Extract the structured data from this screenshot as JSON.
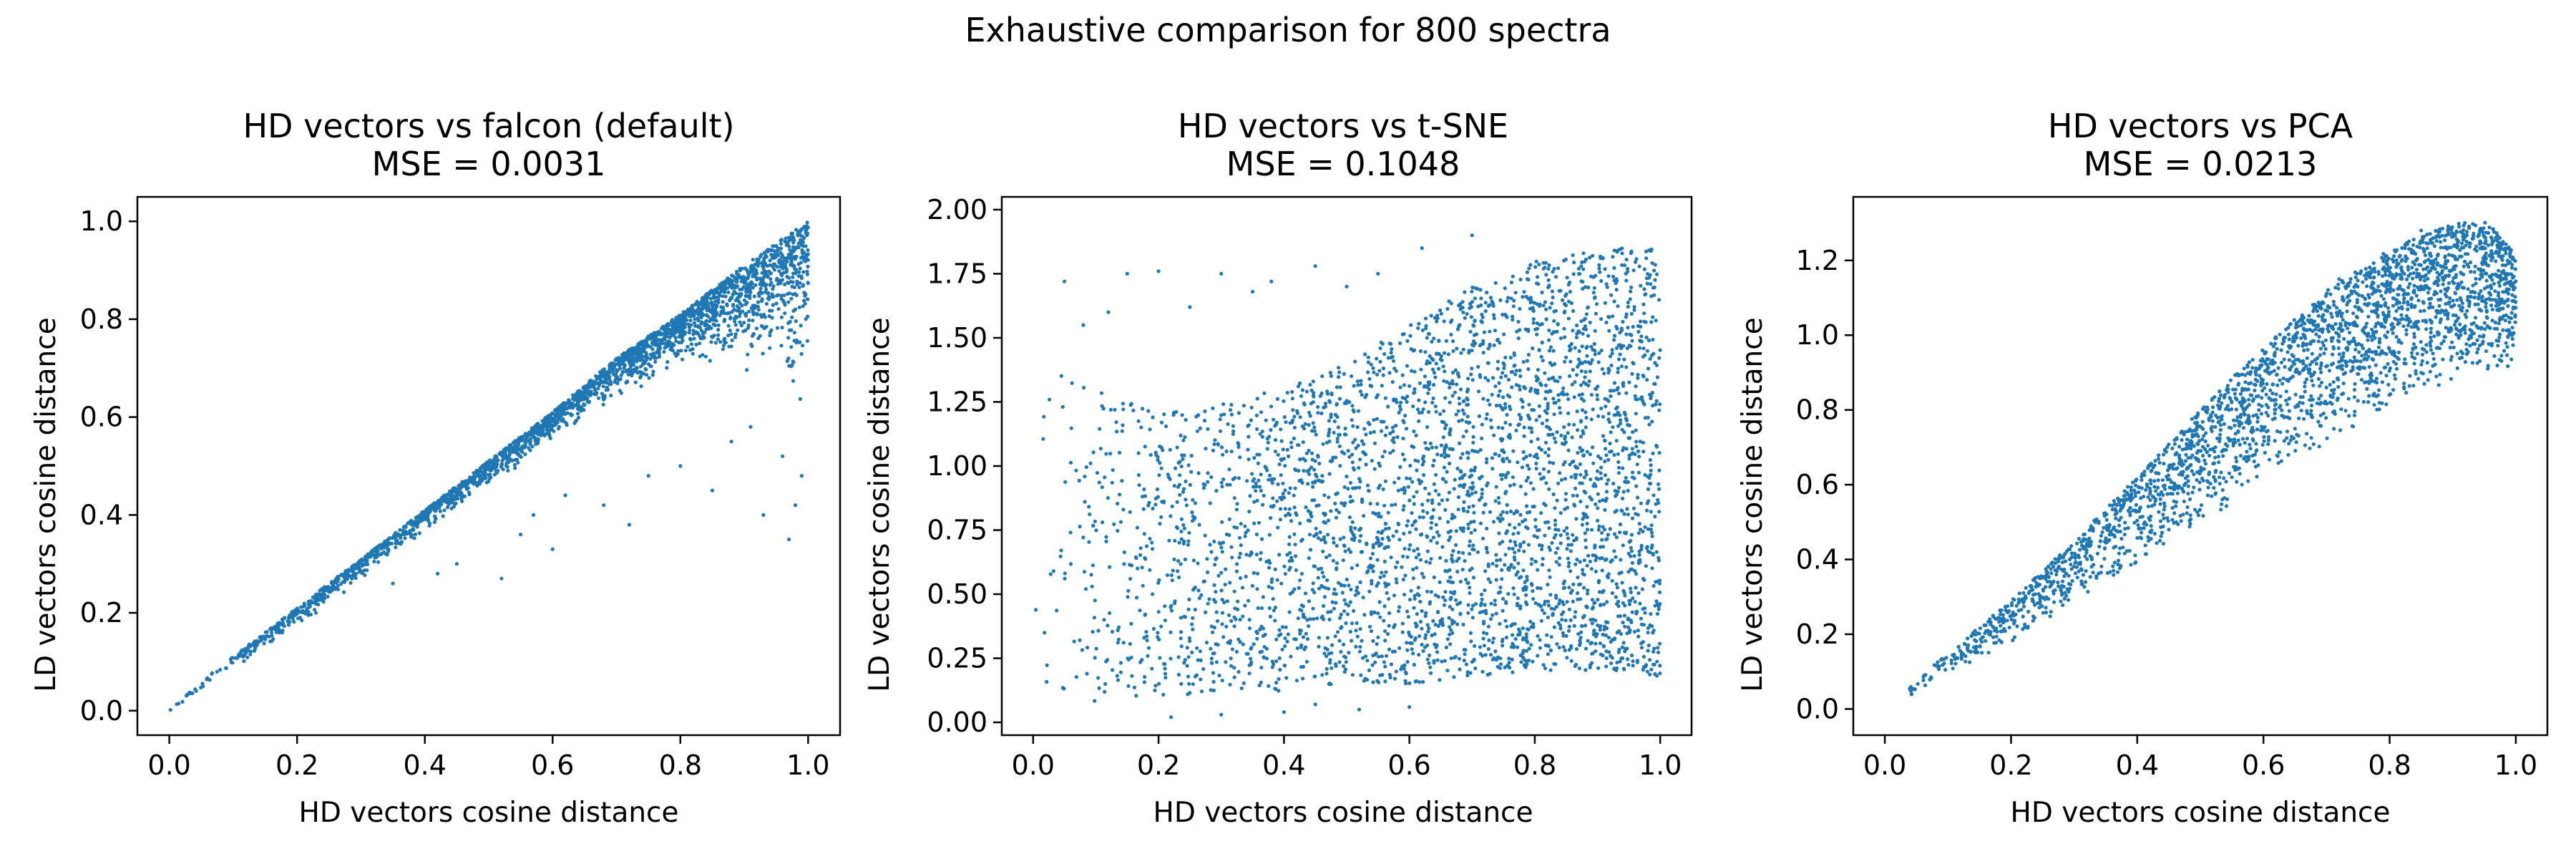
{
  "figure": {
    "suptitle": "Exhaustive comparison for 800 spectra"
  },
  "chart_data": [
    {
      "type": "scatter",
      "title": "HD vectors vs falcon (default)",
      "subtitle": "MSE = 0.0031",
      "xlabel": "HD vectors cosine distance",
      "ylabel": "LD vectors cosine distance",
      "xlim": [
        -0.05,
        1.05
      ],
      "ylim": [
        -0.05,
        1.05
      ],
      "xticks": [
        "0.0",
        "0.2",
        "0.4",
        "0.6",
        "0.8",
        "1.0"
      ],
      "yticks": [
        "0.0",
        "0.2",
        "0.4",
        "0.6",
        "0.8",
        "1.0"
      ],
      "color": "#1f77b4",
      "grid": false,
      "series": [
        {
          "shape": [
            [
              0.0,
              0.0,
              0.0
            ],
            [
              0.05,
              0.04,
              0.06
            ],
            [
              0.1,
              0.08,
              0.11
            ],
            [
              0.2,
              0.17,
              0.21
            ],
            [
              0.3,
              0.26,
              0.31
            ],
            [
              0.4,
              0.36,
              0.41
            ],
            [
              0.5,
              0.45,
              0.51
            ],
            [
              0.6,
              0.55,
              0.61
            ],
            [
              0.7,
              0.63,
              0.72
            ],
            [
              0.8,
              0.7,
              0.81
            ],
            [
              0.9,
              0.68,
              0.91
            ],
            [
              1.0,
              0.62,
              1.0
            ]
          ],
          "outliers": [
            [
              0.45,
              0.3
            ],
            [
              0.42,
              0.28
            ],
            [
              0.52,
              0.27
            ],
            [
              0.6,
              0.33
            ],
            [
              0.55,
              0.36
            ],
            [
              0.68,
              0.42
            ],
            [
              0.72,
              0.38
            ],
            [
              0.85,
              0.45
            ],
            [
              0.93,
              0.4
            ],
            [
              0.97,
              0.35
            ],
            [
              0.99,
              0.48
            ],
            [
              0.96,
              0.52
            ],
            [
              0.8,
              0.5
            ],
            [
              0.75,
              0.48
            ],
            [
              0.88,
              0.55
            ],
            [
              0.35,
              0.26
            ],
            [
              0.62,
              0.44
            ],
            [
              0.91,
              0.58
            ],
            [
              0.98,
              0.42
            ],
            [
              0.57,
              0.4
            ]
          ]
        }
      ]
    },
    {
      "type": "scatter",
      "title": "HD vectors vs t-SNE",
      "subtitle": "MSE = 0.1048",
      "xlabel": "HD vectors cosine distance",
      "ylabel": "LD vectors cosine distance",
      "xlim": [
        -0.05,
        1.05
      ],
      "ylim": [
        -0.05,
        2.05
      ],
      "xticks": [
        "0.0",
        "0.2",
        "0.4",
        "0.6",
        "0.8",
        "1.0"
      ],
      "yticks": [
        "0.00",
        "0.25",
        "0.50",
        "0.75",
        "1.00",
        "1.25",
        "1.50",
        "1.75",
        "2.00"
      ],
      "color": "#1f77b4",
      "grid": false,
      "series": [
        {
          "shape": [
            [
              0.0,
              0.1,
              1.4
            ],
            [
              0.1,
              0.08,
              1.3
            ],
            [
              0.2,
              0.1,
              1.2
            ],
            [
              0.3,
              0.12,
              1.25
            ],
            [
              0.4,
              0.12,
              1.3
            ],
            [
              0.5,
              0.15,
              1.4
            ],
            [
              0.6,
              0.15,
              1.55
            ],
            [
              0.7,
              0.18,
              1.7
            ],
            [
              0.8,
              0.2,
              1.8
            ],
            [
              0.9,
              0.2,
              1.85
            ],
            [
              1.0,
              0.18,
              1.85
            ]
          ],
          "outliers": [
            [
              0.05,
              1.72
            ],
            [
              0.15,
              1.75
            ],
            [
              0.2,
              1.76
            ],
            [
              0.3,
              1.75
            ],
            [
              0.38,
              1.72
            ],
            [
              0.45,
              1.78
            ],
            [
              0.5,
              1.7
            ],
            [
              0.55,
              1.75
            ],
            [
              0.62,
              1.85
            ],
            [
              0.7,
              1.9
            ],
            [
              0.12,
              1.6
            ],
            [
              0.25,
              1.62
            ],
            [
              0.08,
              1.55
            ],
            [
              0.35,
              1.68
            ],
            [
              0.52,
              0.05
            ],
            [
              0.4,
              0.04
            ],
            [
              0.3,
              0.03
            ],
            [
              0.6,
              0.06
            ],
            [
              0.45,
              0.07
            ],
            [
              0.22,
              0.02
            ]
          ]
        }
      ]
    },
    {
      "type": "scatter",
      "title": "HD vectors vs PCA",
      "subtitle": "MSE = 0.0213",
      "xlabel": "HD vectors cosine distance",
      "ylabel": "LD vectors cosine distance",
      "xlim": [
        -0.05,
        1.05
      ],
      "ylim": [
        -0.07,
        1.37
      ],
      "xticks": [
        "0.0",
        "0.2",
        "0.4",
        "0.6",
        "0.8",
        "1.0"
      ],
      "yticks": [
        "0.0",
        "0.2",
        "0.4",
        "0.6",
        "0.8",
        "1.0",
        "1.2"
      ],
      "color": "#1f77b4",
      "grid": false,
      "series": [
        {
          "shape": [
            [
              0.0,
              0.0,
              0.0
            ],
            [
              0.1,
              0.09,
              0.15
            ],
            [
              0.2,
              0.18,
              0.29
            ],
            [
              0.3,
              0.28,
              0.45
            ],
            [
              0.4,
              0.38,
              0.62
            ],
            [
              0.5,
              0.49,
              0.8
            ],
            [
              0.6,
              0.6,
              0.97
            ],
            [
              0.7,
              0.7,
              1.12
            ],
            [
              0.8,
              0.8,
              1.23
            ],
            [
              0.9,
              0.88,
              1.3
            ],
            [
              0.95,
              0.9,
              1.31
            ],
            [
              1.0,
              0.9,
              1.22
            ]
          ],
          "outliers": [
            [
              0.45,
              0.48
            ],
            [
              0.55,
              0.62
            ],
            [
              0.65,
              0.75
            ],
            [
              0.72,
              1.15
            ],
            [
              0.85,
              1.28
            ]
          ]
        }
      ]
    }
  ]
}
